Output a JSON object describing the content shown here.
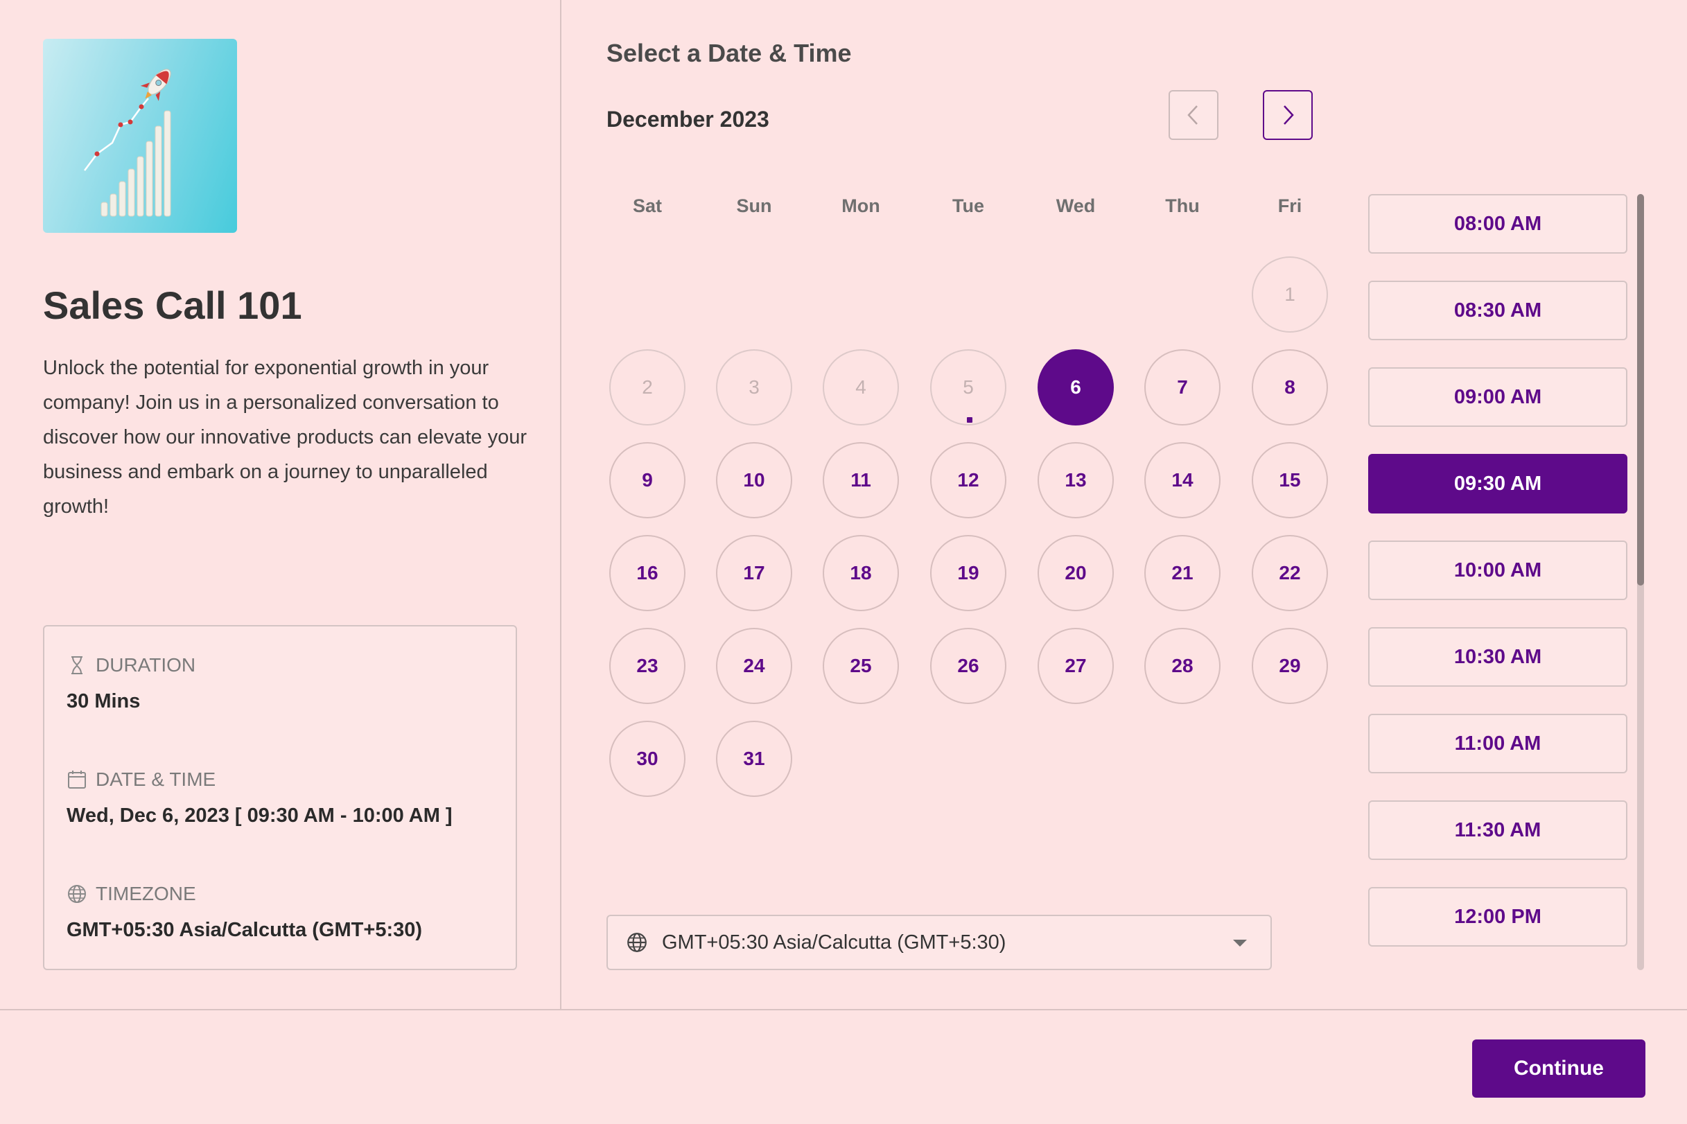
{
  "event": {
    "title": "Sales Call 101",
    "description": "Unlock the potential for exponential growth in your company! Join us in a personalized conversation to discover how our innovative products can elevate your business and embark on a journey to unparalleled growth!",
    "image_icon": "rocket-growth-chart-image"
  },
  "info": {
    "duration_label": "DURATION",
    "duration_value": "30 Mins",
    "datetime_label": "DATE & TIME",
    "datetime_value": "Wed, Dec 6, 2023 [ 09:30 AM - 10:00 AM ]",
    "timezone_label": "TIMEZONE",
    "timezone_value": "GMT+05:30 Asia/Calcutta (GMT+5:30)"
  },
  "calendar": {
    "section_title": "Select a Date & Time",
    "month": "December 2023",
    "weekdays": [
      "Sat",
      "Sun",
      "Mon",
      "Tue",
      "Wed",
      "Thu",
      "Fri"
    ],
    "days": [
      "1",
      "2",
      "3",
      "4",
      "5",
      "6",
      "7",
      "8",
      "9",
      "10",
      "11",
      "12",
      "13",
      "14",
      "15",
      "16",
      "17",
      "18",
      "19",
      "20",
      "21",
      "22",
      "23",
      "24",
      "25",
      "26",
      "27",
      "28",
      "29",
      "30",
      "31"
    ],
    "first_weekday_index": 6,
    "disabled_days": [
      "1",
      "2",
      "3",
      "4",
      "5"
    ],
    "today": "5",
    "selected_day": "6"
  },
  "timezone_select": {
    "value": "GMT+05:30 Asia/Calcutta (GMT+5:30)"
  },
  "time_slots": [
    "08:00 AM",
    "08:30 AM",
    "09:00 AM",
    "09:30 AM",
    "10:00 AM",
    "10:30 AM",
    "11:00 AM",
    "11:30 AM",
    "12:00 PM"
  ],
  "selected_slot": "09:30 AM",
  "footer": {
    "continue_label": "Continue"
  },
  "colors": {
    "background": "#fde3e3",
    "accent": "#5e0a8a"
  }
}
